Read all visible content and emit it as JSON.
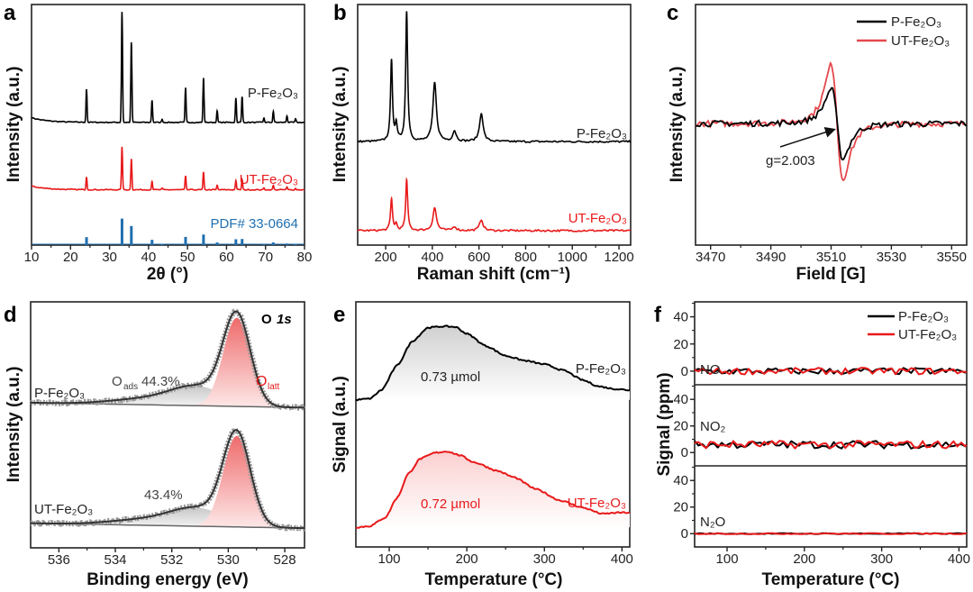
{
  "chart_data": [
    {
      "panel": "a",
      "type": "line",
      "title": "",
      "xlabel": "2θ (°)",
      "ylabel": "Intensity (a.u.)",
      "xlim": [
        10,
        80
      ],
      "ylim": [
        0,
        1
      ],
      "xticks": [
        10,
        20,
        30,
        40,
        50,
        60,
        70,
        80
      ],
      "peaks_2theta": [
        24.1,
        33.2,
        35.6,
        40.9,
        43.5,
        49.5,
        54.1,
        57.6,
        62.4,
        64.0,
        69.6,
        72.0,
        75.5,
        77.7
      ],
      "relative_intensity": [
        0.3,
        1.0,
        0.72,
        0.2,
        0.03,
        0.31,
        0.4,
        0.1,
        0.22,
        0.23,
        0.04,
        0.1,
        0.06,
        0.03
      ],
      "series": [
        {
          "name": "P-Fe₂O₃",
          "color": "#000000",
          "offset": 0.51,
          "scale": 0.46
        },
        {
          "name": "UT-Fe₂O₃",
          "color": "#e8191a",
          "offset": 0.23,
          "scale": 0.18
        },
        {
          "name": "PDF# 33-0664",
          "color": "#1f6fb0",
          "offset": 0.0,
          "scale": 0.11,
          "style": "sticks"
        }
      ]
    },
    {
      "panel": "b",
      "type": "line",
      "xlabel": "Raman shift (cm⁻¹)",
      "ylabel": "Intensity (a.u.)",
      "xlim": [
        80,
        1250
      ],
      "ylim": [
        0,
        1
      ],
      "xticks": [
        200,
        400,
        600,
        800,
        1000,
        1200
      ],
      "peaks_cm": [
        225,
        245,
        290,
        410,
        495,
        610
      ],
      "relative_intensity": [
        0.62,
        0.12,
        1.0,
        0.45,
        0.08,
        0.22
      ],
      "series": [
        {
          "name": "P-Fe₂O₃",
          "color": "#000000",
          "offset": 0.43,
          "scale": 0.54
        },
        {
          "name": "UT-Fe₂O₃",
          "color": "#e8191a",
          "offset": 0.06,
          "scale": 0.21
        }
      ]
    },
    {
      "panel": "c",
      "type": "line",
      "xlabel": "Field [G]",
      "ylabel": "Intensity (a.u.)",
      "xlim": [
        3465,
        3555
      ],
      "ylim": [
        -1.02,
        1.0
      ],
      "xticks": [
        3470,
        3490,
        3510,
        3530,
        3550
      ],
      "center_G": 3512,
      "series": [
        {
          "name": "P-Fe₂O₃",
          "color": "#000000",
          "peak": 0.58,
          "trough": -0.58
        },
        {
          "name": "UT-Fe₂O₃",
          "color": "#e5484d",
          "peak": 0.98,
          "trough": -0.92
        }
      ],
      "annotation": "g=2.003",
      "legend": "top-right"
    },
    {
      "panel": "d",
      "type": "area",
      "xlabel": "Binding energy (eV)",
      "ylabel": "Intensity (a.u.)",
      "xlim": [
        537,
        527.3
      ],
      "ylim": [
        0,
        1
      ],
      "xticks": [
        536,
        534,
        532,
        530,
        528
      ],
      "region": "O 1s",
      "region_parts": [
        "O ",
        "1s"
      ],
      "o_latt_eV": 529.7,
      "o_ads_eV": 531.1,
      "o_ads_label": "O",
      "o_ads_sub": "ads",
      "o_latt_label": "O",
      "o_latt_sub": "latt",
      "series": [
        {
          "name": "P-Fe₂O₃",
          "o_ads_percent": "44.3%",
          "baseline": [
            0.59,
            0.57
          ],
          "latt_amp": 0.36,
          "ads_amp": 0.075
        },
        {
          "name": "UT-Fe₂O₃",
          "o_ads_percent": "43.4%",
          "baseline": [
            0.1,
            0.08
          ],
          "latt_amp": 0.37,
          "ads_amp": 0.07
        }
      ]
    },
    {
      "panel": "e",
      "type": "area",
      "xlabel": "Temperature (°C)",
      "ylabel": "Signal (a.u.)",
      "xlim": [
        57,
        410
      ],
      "ylim": [
        0,
        1
      ],
      "xticks": [
        100,
        200,
        300,
        400
      ],
      "series": [
        {
          "name": "P-Fe₂O₃",
          "color": "#000000",
          "amount": "0.73 µmol",
          "x": [
            57,
            75,
            90,
            110,
            130,
            150,
            170,
            185,
            200,
            225,
            250,
            275,
            300,
            325,
            350,
            370,
            390,
            410
          ],
          "y": [
            0.6,
            0.605,
            0.64,
            0.74,
            0.84,
            0.895,
            0.9,
            0.898,
            0.87,
            0.82,
            0.78,
            0.76,
            0.745,
            0.72,
            0.68,
            0.655,
            0.645,
            0.64
          ]
        },
        {
          "name": "UT-Fe₂O₃",
          "color": "#e8191a",
          "amount": "0.72 µmol",
          "x": [
            57,
            75,
            95,
            110,
            125,
            140,
            160,
            175,
            190,
            210,
            240,
            260,
            290,
            320,
            350,
            375,
            395,
            410
          ],
          "y": [
            0.08,
            0.085,
            0.12,
            0.2,
            0.3,
            0.36,
            0.385,
            0.39,
            0.375,
            0.345,
            0.31,
            0.285,
            0.235,
            0.19,
            0.16,
            0.135,
            0.14,
            0.14
          ]
        }
      ]
    },
    {
      "panel": "f",
      "type": "line",
      "xlabel": "Temperature (°C)",
      "ylabel": "Signal (ppm)",
      "xlim": [
        58,
        410
      ],
      "ylim": [
        -10,
        51
      ],
      "xticks": [
        100,
        200,
        300,
        400
      ],
      "yticks": [
        0,
        20,
        40
      ],
      "subplots": [
        {
          "gas": "NO",
          "mean_ppm": 0,
          "noise_ppm": 2.5
        },
        {
          "gas": "NO₂",
          "mean_ppm": 6,
          "noise_ppm": 3
        },
        {
          "gas": "N₂O",
          "mean_ppm": 0,
          "noise_ppm": 0.4
        }
      ],
      "series": [
        {
          "name": "P-Fe₂O₃",
          "color": "#000000"
        },
        {
          "name": "UT-Fe₂O₃",
          "color": "#e8191a"
        }
      ],
      "legend": "top-right"
    }
  ],
  "panel_labels": [
    "a",
    "b",
    "c",
    "d",
    "e",
    "f"
  ]
}
